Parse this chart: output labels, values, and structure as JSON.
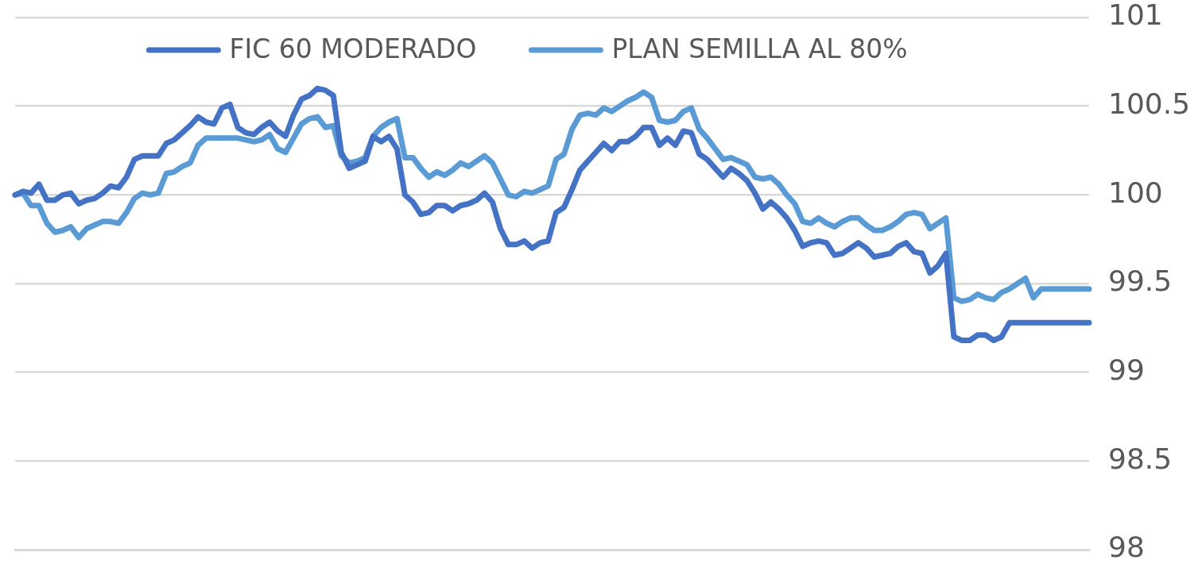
{
  "chart_data": {
    "type": "line",
    "categories": [
      null,
      null,
      null,
      null,
      null,
      null,
      null,
      null,
      null,
      null,
      null,
      null,
      null,
      null,
      null,
      null,
      null,
      null,
      null,
      null,
      null,
      null,
      null,
      null,
      null,
      null,
      null,
      null,
      null,
      null,
      null,
      null,
      null,
      null,
      null,
      null,
      null,
      null,
      null,
      null,
      null,
      null,
      null,
      null,
      null,
      null,
      null,
      null,
      null,
      null,
      null,
      null,
      null,
      null,
      null,
      null,
      null,
      null,
      null,
      null,
      null,
      null,
      null,
      null,
      null,
      null,
      null,
      null,
      null,
      null,
      null,
      null,
      null,
      null,
      null,
      null,
      null,
      null,
      null,
      null,
      null,
      null,
      null,
      null,
      null,
      null,
      null,
      null,
      null,
      null,
      null,
      null,
      null,
      null,
      null,
      null,
      null,
      null,
      null,
      null,
      null,
      null,
      null,
      null,
      null,
      null,
      null,
      null,
      null,
      null,
      null,
      null,
      null,
      null,
      null,
      null,
      null,
      null,
      null,
      null,
      null,
      null,
      null,
      null,
      null,
      null,
      null,
      null,
      null,
      null,
      null,
      null,
      null,
      null,
      null,
      null
    ],
    "series": [
      {
        "name": "FIC 60 MODERADO",
        "color": "#4472c4",
        "values": [
          100.0,
          100.02,
          100.01,
          100.06,
          99.97,
          99.97,
          100.0,
          100.01,
          99.95,
          99.97,
          99.98,
          100.01,
          100.05,
          100.04,
          100.1,
          100.2,
          100.22,
          100.22,
          100.22,
          100.29,
          100.31,
          100.35,
          100.39,
          100.44,
          100.41,
          100.4,
          100.49,
          100.51,
          100.38,
          100.35,
          100.34,
          100.38,
          100.41,
          100.36,
          100.33,
          100.45,
          100.54,
          100.56,
          100.6,
          100.59,
          100.56,
          100.24,
          100.15,
          100.17,
          100.19,
          100.33,
          100.3,
          100.33,
          100.26,
          100.0,
          99.96,
          99.89,
          99.9,
          99.94,
          99.94,
          99.91,
          99.94,
          99.95,
          99.97,
          100.01,
          99.96,
          99.81,
          99.72,
          99.72,
          99.74,
          99.7,
          99.73,
          99.74,
          99.9,
          99.93,
          100.03,
          100.14,
          100.19,
          100.24,
          100.29,
          100.25,
          100.3,
          100.3,
          100.33,
          100.38,
          100.38,
          100.28,
          100.32,
          100.28,
          100.36,
          100.35,
          100.23,
          100.2,
          100.15,
          100.1,
          100.15,
          100.12,
          100.08,
          100.01,
          99.92,
          99.96,
          99.92,
          99.87,
          99.8,
          99.71,
          99.73,
          99.74,
          99.73,
          99.66,
          99.67,
          99.7,
          99.73,
          99.7,
          99.65,
          99.66,
          99.67,
          99.71,
          99.73,
          99.68,
          99.67,
          99.56,
          99.6,
          99.67,
          99.2,
          99.18,
          99.18,
          99.21,
          99.21,
          99.18,
          99.2,
          99.28,
          99.28,
          99.28,
          99.28,
          99.28,
          99.28,
          99.28,
          99.28,
          99.28,
          99.28,
          99.28
        ]
      },
      {
        "name": "PLAN SEMILLA AL 80%",
        "color": "#5b9bd5",
        "values": [
          100.0,
          100.01,
          99.94,
          99.94,
          99.84,
          99.79,
          99.8,
          99.82,
          99.76,
          99.81,
          99.83,
          99.85,
          99.85,
          99.84,
          99.9,
          99.98,
          100.01,
          100.0,
          100.01,
          100.12,
          100.13,
          100.16,
          100.18,
          100.28,
          100.32,
          100.32,
          100.32,
          100.32,
          100.32,
          100.31,
          100.3,
          100.31,
          100.34,
          100.26,
          100.24,
          100.32,
          100.4,
          100.43,
          100.44,
          100.38,
          100.39,
          100.22,
          100.18,
          100.19,
          100.21,
          100.33,
          100.38,
          100.41,
          100.43,
          100.21,
          100.21,
          100.15,
          100.1,
          100.13,
          100.11,
          100.14,
          100.18,
          100.16,
          100.19,
          100.22,
          100.18,
          100.09,
          100.0,
          99.99,
          100.02,
          100.01,
          100.03,
          100.05,
          100.2,
          100.23,
          100.37,
          100.45,
          100.46,
          100.45,
          100.49,
          100.47,
          100.5,
          100.53,
          100.55,
          100.58,
          100.55,
          100.42,
          100.41,
          100.42,
          100.47,
          100.49,
          100.37,
          100.32,
          100.26,
          100.2,
          100.21,
          100.19,
          100.17,
          100.1,
          100.09,
          100.1,
          100.06,
          100.0,
          99.95,
          99.85,
          99.84,
          99.87,
          99.84,
          99.82,
          99.85,
          99.87,
          99.87,
          99.83,
          99.8,
          99.8,
          99.82,
          99.85,
          99.89,
          99.9,
          99.89,
          99.81,
          99.84,
          99.87,
          99.42,
          99.4,
          99.41,
          99.44,
          99.42,
          99.41,
          99.45,
          99.47,
          99.5,
          99.53,
          99.42,
          99.47,
          99.47,
          99.47,
          99.47,
          99.47,
          99.47,
          99.47
        ]
      }
    ],
    "ylim": [
      98,
      101
    ],
    "yticks": [
      98,
      98.5,
      99,
      99.5,
      100,
      100.5,
      101
    ],
    "grid": "y",
    "legend": "top",
    "tick_labels": "y"
  }
}
